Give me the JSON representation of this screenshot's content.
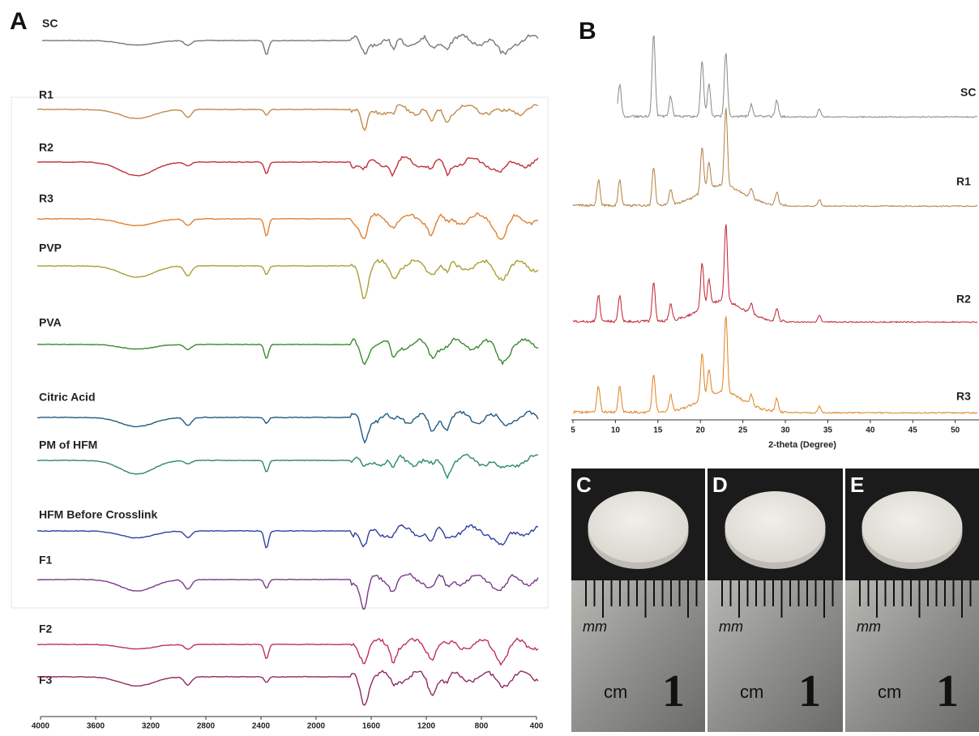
{
  "panel_a": {
    "label": "A",
    "traces": [
      "SC",
      "R1",
      "R2",
      "R3",
      "PVP",
      "PVA",
      "Citric Acid",
      "PM of HFM",
      "HFM Before Crosslink",
      "F1",
      "F2",
      "F3"
    ],
    "xlim": [
      4000,
      400
    ],
    "xticks": [
      4000,
      3600,
      3200,
      2800,
      2400,
      2000,
      1600,
      1200,
      800,
      400
    ]
  },
  "panel_b": {
    "label": "B",
    "traces": [
      "SC",
      "R1",
      "R2",
      "R3"
    ],
    "x_axis_label": "2-theta (Degree)",
    "xlim": [
      5,
      52.8
    ],
    "xticks": [
      5,
      10,
      15,
      20,
      25,
      30,
      35,
      40,
      45,
      50
    ]
  },
  "photos": [
    {
      "label": "C",
      "ruler_small_unit": "mm",
      "ruler_large_unit": "cm",
      "ruler_number": "1"
    },
    {
      "label": "D",
      "ruler_small_unit": "mm",
      "ruler_large_unit": "cm",
      "ruler_number": "1"
    },
    {
      "label": "E",
      "ruler_small_unit": "mm",
      "ruler_large_unit": "cm",
      "ruler_number": "1"
    }
  ]
}
